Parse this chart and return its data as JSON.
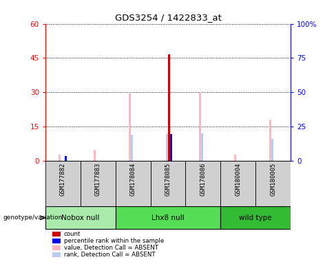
{
  "title": "GDS3254 / 1422833_at",
  "samples": [
    "GSM177882",
    "GSM177883",
    "GSM178084",
    "GSM178085",
    "GSM178086",
    "GSM180004",
    "GSM180005"
  ],
  "groups": [
    {
      "label": "Nobox null",
      "indices": [
        0,
        1
      ]
    },
    {
      "label": "Lhx8 null",
      "indices": [
        2,
        3,
        4
      ]
    },
    {
      "label": "wild type",
      "indices": [
        5,
        6
      ]
    }
  ],
  "group_colors": [
    "#AAEAAA",
    "#55DD55",
    "#33BB33"
  ],
  "red_bars": [
    0,
    0,
    0,
    46.5,
    0,
    0,
    0
  ],
  "blue_bars": [
    3.5,
    0,
    0,
    19.5,
    0,
    0,
    0
  ],
  "pink_bars": [
    4.5,
    8,
    49,
    0,
    50,
    4.5,
    30
  ],
  "lightblue_bars": [
    0,
    0,
    19,
    19.5,
    20,
    0,
    16
  ],
  "ylim_left": [
    0,
    60
  ],
  "ylim_right": [
    0,
    100
  ],
  "yticks_left": [
    0,
    15,
    30,
    45,
    60
  ],
  "yticks_right": [
    0,
    25,
    50,
    75,
    100
  ],
  "color_red": "#CC0000",
  "color_blue": "#0000EE",
  "color_pink": "#FFB6C1",
  "color_lightblue": "#BBCCEE",
  "color_panel": "#D0D0D0",
  "legend_items": [
    [
      "#CC0000",
      "count"
    ],
    [
      "#0000EE",
      "percentile rank within the sample"
    ],
    [
      "#FFB6C1",
      "value, Detection Call = ABSENT"
    ],
    [
      "#BBCCEE",
      "rank, Detection Call = ABSENT"
    ]
  ]
}
